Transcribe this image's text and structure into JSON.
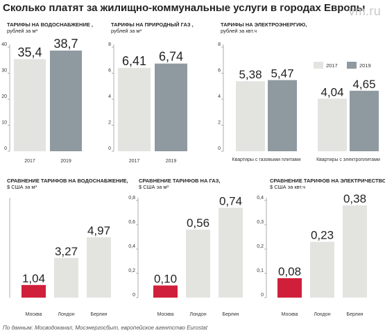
{
  "header": {
    "title": "Сколько платят за жилищно-коммунальные услуги в городах Европы",
    "logo": "vm.ru"
  },
  "footer": {
    "source": "По данным: Мосводоканал, Мосэнергосбыт, европейское агентство Eurostat"
  },
  "colors": {
    "bar_2017": "#e3e3e0",
    "bar_2019": "#8f9aa0",
    "moscow": "#cf1f3a",
    "foreign": "#e3e3e0",
    "axis": "#9a9a9a",
    "tick_text": "#333333"
  },
  "chart_data": [
    {
      "id": "water-rub",
      "type": "bar",
      "title": "ТАРИФЫ НА ВОДОСНАБЖЕНИЕ ,",
      "unit": "рублей за м³",
      "categories": [
        "2017",
        "2019"
      ],
      "values": [
        35.4,
        38.7
      ],
      "value_labels": [
        "35,4",
        "38,7"
      ],
      "ylim": [
        0,
        40
      ],
      "yticks": [
        0,
        10,
        20,
        30,
        40
      ],
      "ytick_labels": [
        "0",
        "10",
        "20",
        "30",
        "40"
      ]
    },
    {
      "id": "gas-rub",
      "type": "bar",
      "title": "ТАРИФЫ НА ПРИРОДНЫЙ ГАЗ ,",
      "unit": "рублей за м³",
      "categories": [
        "2017",
        "2019"
      ],
      "values": [
        6.41,
        6.74
      ],
      "value_labels": [
        "6,41",
        "6,74"
      ],
      "ylim": [
        0,
        8
      ],
      "yticks": [
        0,
        2,
        4,
        6,
        8
      ],
      "ytick_labels": [
        "0",
        "2",
        "4",
        "6",
        "8"
      ]
    },
    {
      "id": "electricity-rub",
      "type": "bar",
      "title": "ТАРИФЫ НА ЭЛЕКТРОЭНЕРГИЮ,",
      "unit": "рублей за квт.ч",
      "categories": [
        "Квартиры с газовыми плитами",
        "Квартиры с электроплитами"
      ],
      "series": [
        {
          "name": "2017",
          "values": [
            5.38,
            4.04
          ],
          "value_labels": [
            "5,38",
            "4,04"
          ]
        },
        {
          "name": "2019",
          "values": [
            5.47,
            4.65
          ],
          "value_labels": [
            "5,47",
            "4,65"
          ]
        }
      ],
      "ylim": [
        0,
        8
      ],
      "yticks": [
        0,
        2,
        4,
        6,
        8
      ],
      "ytick_labels": [
        "0",
        "2",
        "4",
        "6",
        "8"
      ],
      "legend": "top-right"
    },
    {
      "id": "water-usd",
      "type": "bar",
      "title": "СРАВНЕНИЕ ТАРИФОВ НА ВОДОСНАБЖЕНИЕ,",
      "unit": "$ США за м³",
      "categories": [
        "Москва",
        "Лондон",
        "Берлин"
      ],
      "values": [
        1.04,
        3.27,
        4.97
      ],
      "value_labels": [
        "1,04",
        "3,27",
        "4,97"
      ],
      "ylim": [
        0,
        8
      ],
      "yticks": [],
      "ytick_labels": []
    },
    {
      "id": "gas-usd",
      "type": "bar",
      "title": "СРАВНЕНИЕ ТАРИФОВ НА ГАЗ,",
      "unit": "$ США за м³",
      "categories": [
        "Москва",
        "Лондон",
        "Берлин"
      ],
      "values": [
        0.1,
        0.56,
        0.74
      ],
      "value_labels": [
        "0,10",
        "0,56",
        "0,74"
      ],
      "ylim": [
        0,
        0.8
      ],
      "yticks": [
        0,
        0.2,
        0.4,
        0.6,
        0.8
      ],
      "ytick_labels": [
        "0",
        "0,2",
        "0,4",
        "0,6",
        "0,8"
      ]
    },
    {
      "id": "electricity-usd",
      "type": "bar",
      "title": "СРАВНЕНИЕ ТАРИФОВ НА ЭЛЕКТРИЧЕСТВО,",
      "unit": "$ США за квт.ч",
      "categories": [
        "Москва",
        "Лондон",
        "Берлин"
      ],
      "values": [
        0.08,
        0.23,
        0.38
      ],
      "value_labels": [
        "0,08",
        "0,23",
        "0,38"
      ],
      "ylim": [
        0,
        0.4
      ],
      "yticks": [
        0,
        0.1,
        0.2,
        0.3,
        0.4
      ],
      "ytick_labels": [
        "0",
        "0,1",
        "0,2",
        "0,3",
        "0,4"
      ]
    }
  ]
}
